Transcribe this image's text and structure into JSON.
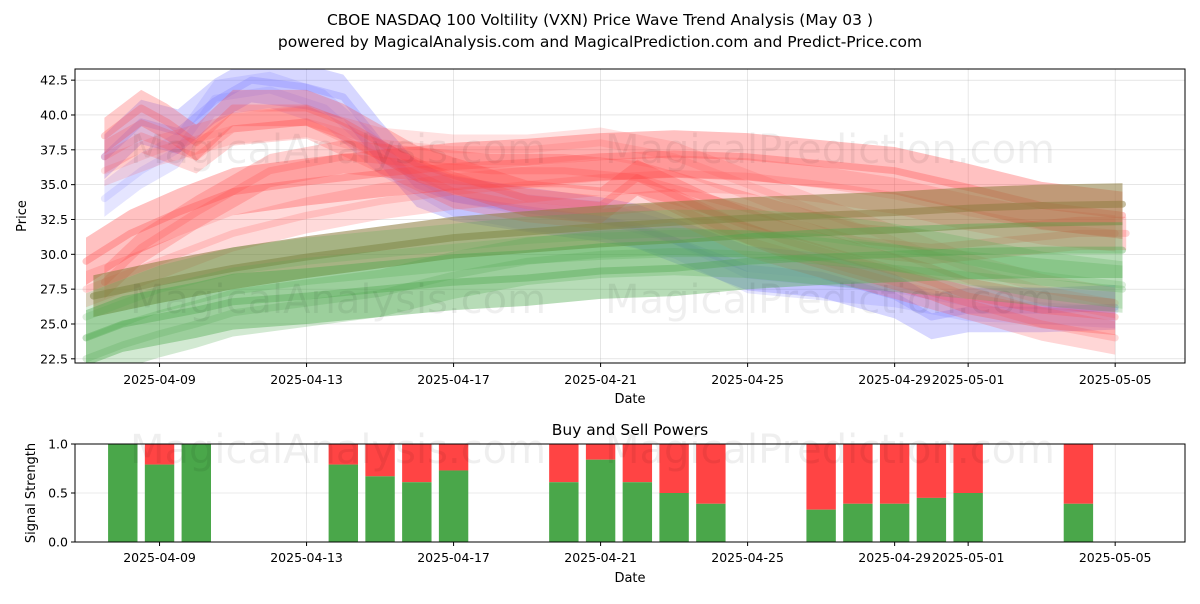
{
  "title_line1": "CBOE NASDAQ 100 Voltility (VXN) Price Wave Trend Analysis (May 03 )",
  "title_line2": "powered by MagicalAnalysis.com and MagicalPrediction.com and Predict-Price.com",
  "watermarks": [
    "MagicalAnalysis.com",
    "MagicalPrediction.com"
  ],
  "chart_data": [
    {
      "type": "area",
      "ylabel": "Price",
      "xlabel": "Date",
      "ylim": [
        22.2,
        43.3
      ],
      "xlim": [
        -2.3,
        27.9
      ],
      "x_ticks": [
        {
          "pos": 0,
          "label": "2025-04-09"
        },
        {
          "pos": 4,
          "label": "2025-04-13"
        },
        {
          "pos": 8,
          "label": "2025-04-17"
        },
        {
          "pos": 12,
          "label": "2025-04-21"
        },
        {
          "pos": 16,
          "label": "2025-04-25"
        },
        {
          "pos": 20,
          "label": "2025-04-29"
        },
        {
          "pos": 22,
          "label": "2025-05-01"
        },
        {
          "pos": 26,
          "label": "2025-05-05"
        }
      ],
      "y_ticks": [
        22.5,
        25.0,
        27.5,
        30.0,
        32.5,
        35.0,
        37.5,
        40.0,
        42.5
      ],
      "colors": {
        "red": "#ff4444",
        "green": "#4aa74a",
        "blue": "#6f6fff"
      },
      "series": [
        {
          "name": "blue-wave-1",
          "color": "blue",
          "opacity": 0.28,
          "width": 3.2,
          "x": [
            -1.5,
            -0.5,
            0.5,
            1.5,
            2.5,
            4,
            5,
            6,
            7,
            8,
            10,
            12,
            13,
            14,
            16,
            18,
            20,
            21,
            22,
            24,
            26
          ],
          "y": [
            37.0,
            39.5,
            38.8,
            41.0,
            42.5,
            42.0,
            41.3,
            38.0,
            35.0,
            34.0,
            33.2,
            32.5,
            32.0,
            31.0,
            29.0,
            28.5,
            27.0,
            25.5,
            26.0,
            26.0,
            26.2
          ]
        },
        {
          "name": "blue-wave-2",
          "color": "blue",
          "opacity": 0.18,
          "width": 2.6,
          "x": [
            -1.5,
            -0.5,
            0.5,
            1.5,
            3,
            4.5,
            6,
            8,
            10,
            12,
            14,
            16,
            18,
            20,
            22,
            24,
            26
          ],
          "y": [
            34.0,
            36.0,
            37.5,
            41.2,
            41.8,
            40.5,
            37.0,
            34.0,
            33.0,
            32.5,
            31.0,
            28.5,
            28.0,
            27.5,
            26.5,
            26.3,
            26.0
          ]
        },
        {
          "name": "red-upper-1",
          "color": "red",
          "opacity": 0.28,
          "width": 2.6,
          "x": [
            -1.5,
            -0.5,
            0.2,
            1,
            2,
            4,
            5,
            7,
            10,
            12,
            13,
            15,
            17,
            19,
            21,
            22,
            24,
            26
          ],
          "y": [
            38.5,
            40.5,
            39.5,
            38.0,
            40.5,
            40.5,
            39.5,
            36.5,
            34.0,
            33.5,
            35.5,
            33.0,
            31.0,
            29.5,
            28.0,
            27.0,
            26.0,
            25.5
          ]
        },
        {
          "name": "red-upper-2",
          "color": "red",
          "opacity": 0.22,
          "width": 2.4,
          "x": [
            -1.5,
            -0.5,
            1,
            2,
            4,
            6,
            8,
            10,
            12,
            14,
            16,
            18,
            20,
            22,
            24,
            26
          ],
          "y": [
            37.0,
            38.5,
            37.0,
            39.0,
            39.5,
            37.0,
            34.5,
            33.5,
            33.0,
            33.5,
            31.0,
            29.5,
            28.0,
            26.5,
            25.0,
            24.0
          ]
        },
        {
          "name": "red-upper-3",
          "color": "red",
          "opacity": 0.16,
          "width": 2.2,
          "x": [
            -1.5,
            0,
            2,
            4,
            6,
            8,
            10,
            12,
            14,
            16,
            18,
            20,
            22,
            24,
            26
          ],
          "y": [
            36.0,
            37.5,
            39.0,
            39.5,
            38.0,
            37.5,
            37.5,
            38.0,
            37.0,
            35.0,
            33.0,
            31.0,
            29.0,
            27.5,
            26.5
          ]
        },
        {
          "name": "red-rise-1",
          "color": "red",
          "opacity": 0.33,
          "width": 3.4,
          "x": [
            -2,
            -0.8,
            0.5,
            2,
            4,
            6,
            8,
            10,
            12,
            14,
            16,
            18,
            20,
            22,
            24,
            26.2
          ],
          "y": [
            29.5,
            31.5,
            33.0,
            34.5,
            35.2,
            35.8,
            36.3,
            36.6,
            37.0,
            37.2,
            37.0,
            36.5,
            36.0,
            34.8,
            33.5,
            32.8
          ]
        },
        {
          "name": "red-rise-2",
          "color": "red",
          "opacity": 0.2,
          "width": 2.6,
          "x": [
            -2,
            0,
            2,
            4,
            6,
            8,
            10,
            12,
            14,
            16,
            18,
            20,
            22,
            24,
            26
          ],
          "y": [
            27.5,
            29.5,
            31.5,
            32.8,
            33.8,
            34.5,
            35.0,
            35.5,
            35.8,
            35.6,
            35.0,
            34.2,
            33.0,
            32.0,
            31.5
          ]
        },
        {
          "name": "red-rise-3",
          "color": "red",
          "opacity": 0.25,
          "width": 2.4,
          "x": [
            -1.5,
            -0.5,
            1,
            3,
            5,
            7,
            9,
            11,
            13,
            15,
            17,
            19,
            21,
            23,
            25,
            26.3
          ],
          "y": [
            28.0,
            30.5,
            33.0,
            36.0,
            37.0,
            36.5,
            36.0,
            36.0,
            35.5,
            34.0,
            32.5,
            31.0,
            30.5,
            31.0,
            31.5,
            31.5
          ]
        },
        {
          "name": "olive-trend",
          "color": "olive",
          "opacity": 0.55,
          "width": 3.0,
          "x": [
            -1.8,
            0,
            2,
            4,
            6,
            8,
            10,
            12,
            14,
            16,
            18,
            20,
            22,
            24,
            26.2
          ],
          "y": [
            27.0,
            28.0,
            29.0,
            29.8,
            30.5,
            31.2,
            31.6,
            32.0,
            32.3,
            32.6,
            32.8,
            33.0,
            33.3,
            33.5,
            33.6
          ]
        },
        {
          "name": "green-1",
          "color": "green",
          "opacity": 0.4,
          "width": 4.0,
          "x": [
            -2,
            -1,
            0,
            1,
            2,
            4,
            6,
            8,
            10,
            12,
            14,
            16,
            18,
            20,
            22,
            24,
            26.2
          ],
          "y": [
            24.0,
            25.0,
            25.5,
            26.0,
            26.6,
            27.0,
            27.5,
            28.0,
            28.3,
            28.8,
            29.0,
            29.5,
            29.8,
            30.0,
            30.2,
            30.3,
            30.3
          ]
        },
        {
          "name": "green-2",
          "color": "green",
          "opacity": 0.25,
          "width": 3.4,
          "x": [
            -2,
            -1,
            0,
            1,
            2,
            4,
            6,
            8,
            10,
            12,
            14,
            16,
            18,
            20,
            22,
            24,
            26.2
          ],
          "y": [
            22.5,
            23.5,
            24.3,
            25.0,
            25.8,
            26.5,
            27.2,
            28.5,
            29.5,
            30.0,
            30.2,
            30.0,
            29.5,
            29.0,
            28.5,
            28.0,
            27.5
          ]
        },
        {
          "name": "green-3",
          "color": "green",
          "opacity": 0.22,
          "width": 3.4,
          "x": [
            -2,
            0,
            2,
            4,
            6,
            8,
            10,
            12,
            14,
            16,
            18,
            20,
            22,
            24,
            26.2
          ],
          "y": [
            25.5,
            27.5,
            28.8,
            29.5,
            30.0,
            30.5,
            31.0,
            31.3,
            31.5,
            31.5,
            31.2,
            30.5,
            29.5,
            28.5,
            27.8
          ]
        }
      ]
    },
    {
      "type": "bar",
      "title": "Buy and Sell Powers",
      "ylabel": "Signal Strength",
      "xlabel": "Date",
      "ylim": [
        0,
        1
      ],
      "y_ticks": [
        "0.0",
        "0.5",
        "1.0"
      ],
      "x_ticks": [
        {
          "pos": 0,
          "label": "2025-04-09"
        },
        {
          "pos": 4,
          "label": "2025-04-13"
        },
        {
          "pos": 8,
          "label": "2025-04-17"
        },
        {
          "pos": 12,
          "label": "2025-04-21"
        },
        {
          "pos": 16,
          "label": "2025-04-25"
        },
        {
          "pos": 20,
          "label": "2025-04-29"
        },
        {
          "pos": 22,
          "label": "2025-05-01"
        },
        {
          "pos": 26,
          "label": "2025-05-05"
        }
      ],
      "colors": {
        "buy": "#4aa74a",
        "sell": "#ff4444"
      },
      "bars": [
        {
          "date": "2025-04-08",
          "pos": -1,
          "buy": 1.0
        },
        {
          "date": "2025-04-09",
          "pos": 0,
          "buy": 0.79
        },
        {
          "date": "2025-04-10",
          "pos": 1,
          "buy": 1.0
        },
        {
          "date": "2025-04-14",
          "pos": 5,
          "buy": 0.79
        },
        {
          "date": "2025-04-15",
          "pos": 6,
          "buy": 0.67
        },
        {
          "date": "2025-04-16",
          "pos": 7,
          "buy": 0.61
        },
        {
          "date": "2025-04-17",
          "pos": 8,
          "buy": 0.73
        },
        {
          "date": "2025-04-21",
          "pos": 11,
          "buy": 0.61
        },
        {
          "date": "2025-04-22",
          "pos": 12,
          "buy": 0.84
        },
        {
          "date": "2025-04-23",
          "pos": 13,
          "buy": 0.61
        },
        {
          "date": "2025-04-24",
          "pos": 14,
          "buy": 0.5
        },
        {
          "date": "2025-04-25",
          "pos": 15,
          "buy": 0.39
        },
        {
          "date": "2025-04-28",
          "pos": 18,
          "buy": 0.33
        },
        {
          "date": "2025-04-29",
          "pos": 19,
          "buy": 0.39
        },
        {
          "date": "2025-04-30",
          "pos": 20,
          "buy": 0.39
        },
        {
          "date": "2025-05-01",
          "pos": 21,
          "buy": 0.45
        },
        {
          "date": "2025-05-02",
          "pos": 22,
          "buy": 0.5
        },
        {
          "date": "2025-05-05",
          "pos": 25,
          "buy": 0.39
        }
      ]
    }
  ]
}
